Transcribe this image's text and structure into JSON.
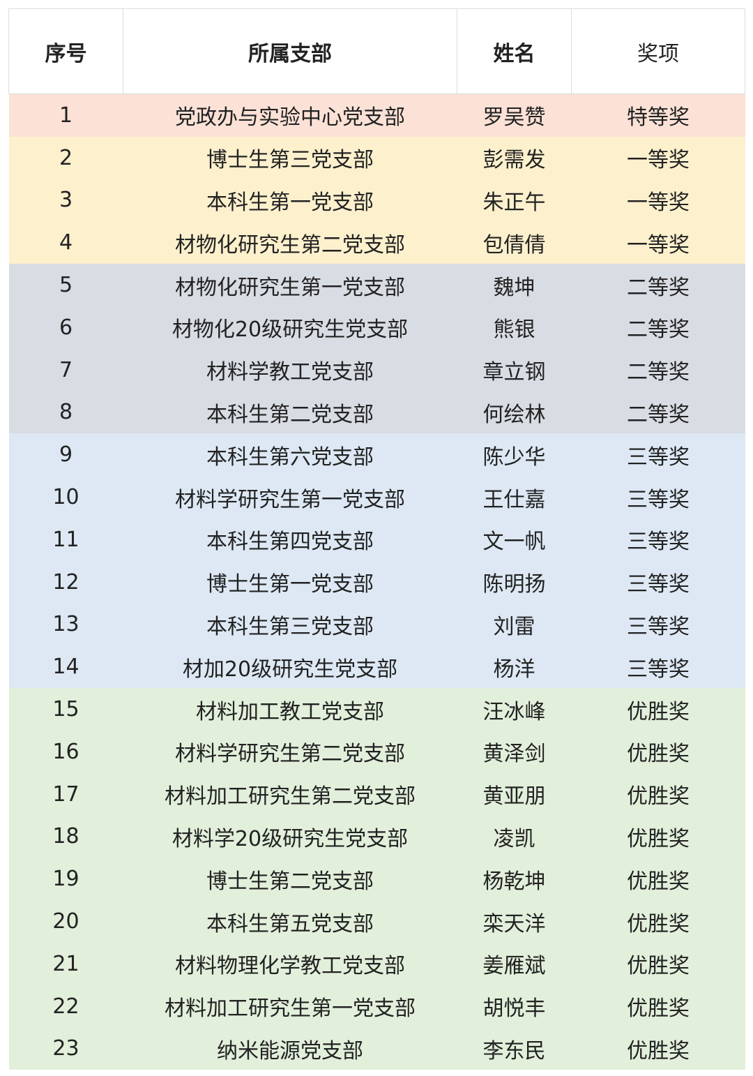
{
  "header": {
    "no": "序号",
    "branch": "所属支部",
    "name": "姓名",
    "award": "奖项"
  },
  "award_colors": {
    "特等奖": "#fbe1d6",
    "一等奖": "#fdf0cd",
    "二等奖": "#d8dce3",
    "三等奖": "#dde8f4",
    "优胜奖": "#e2efdb"
  },
  "rows": [
    {
      "no": "1",
      "branch": "党政办与实验中心党支部",
      "name": "罗吴赞",
      "award": "特等奖"
    },
    {
      "no": "2",
      "branch": "博士生第三党支部",
      "name": "彭需发",
      "award": "一等奖"
    },
    {
      "no": "3",
      "branch": "本科生第一党支部",
      "name": "朱正午",
      "award": "一等奖"
    },
    {
      "no": "4",
      "branch": "材物化研究生第二党支部",
      "name": "包倩倩",
      "award": "一等奖"
    },
    {
      "no": "5",
      "branch": "材物化研究生第一党支部",
      "name": "魏坤",
      "award": "二等奖"
    },
    {
      "no": "6",
      "branch": "材物化20级研究生党支部",
      "name": "熊银",
      "award": "二等奖"
    },
    {
      "no": "7",
      "branch": "材料学教工党支部",
      "name": "章立钢",
      "award": "二等奖"
    },
    {
      "no": "8",
      "branch": "本科生第二党支部",
      "name": "何绘林",
      "award": "二等奖"
    },
    {
      "no": "9",
      "branch": "本科生第六党支部",
      "name": "陈少华",
      "award": "三等奖"
    },
    {
      "no": "10",
      "branch": "材料学研究生第一党支部",
      "name": "王仕嘉",
      "award": "三等奖"
    },
    {
      "no": "11",
      "branch": "本科生第四党支部",
      "name": "文一帆",
      "award": "三等奖"
    },
    {
      "no": "12",
      "branch": "博士生第一党支部",
      "name": "陈明扬",
      "award": "三等奖"
    },
    {
      "no": "13",
      "branch": "本科生第三党支部",
      "name": "刘雷",
      "award": "三等奖"
    },
    {
      "no": "14",
      "branch": "材加20级研究生党支部",
      "name": "杨洋",
      "award": "三等奖"
    },
    {
      "no": "15",
      "branch": "材料加工教工党支部",
      "name": "汪冰峰",
      "award": "优胜奖"
    },
    {
      "no": "16",
      "branch": "材料学研究生第二党支部",
      "name": "黄泽剑",
      "award": "优胜奖"
    },
    {
      "no": "17",
      "branch": "材料加工研究生第二党支部",
      "name": "黄亚朋",
      "award": "优胜奖"
    },
    {
      "no": "18",
      "branch": "材料学20级研究生党支部",
      "name": "凌凯",
      "award": "优胜奖"
    },
    {
      "no": "19",
      "branch": "博士生第二党支部",
      "name": "杨乾坤",
      "award": "优胜奖"
    },
    {
      "no": "20",
      "branch": "本科生第五党支部",
      "name": "栾天洋",
      "award": "优胜奖"
    },
    {
      "no": "21",
      "branch": "材料物理化学教工党支部",
      "name": "姜雁斌",
      "award": "优胜奖"
    },
    {
      "no": "22",
      "branch": "材料加工研究生第一党支部",
      "name": "胡悦丰",
      "award": "优胜奖"
    },
    {
      "no": "23",
      "branch": "纳米能源党支部",
      "name": "李东民",
      "award": "优胜奖"
    }
  ]
}
